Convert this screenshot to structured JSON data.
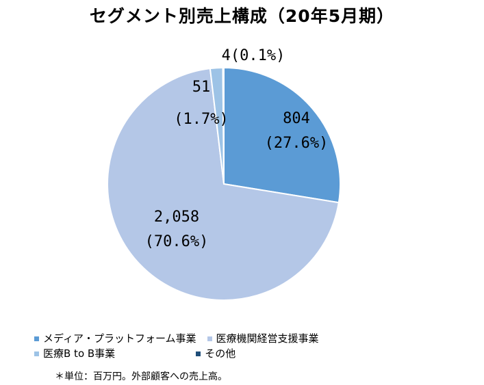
{
  "chart_data": {
    "type": "pie",
    "title": "セグメント別売上構成（20年5月期）",
    "slices": [
      {
        "name": "メディア・プラットフォーム事業",
        "value": 804,
        "pct_label": "(27.6%)",
        "value_label": "804",
        "color": "#5b9bd5"
      },
      {
        "name": "医療機関経営支援事業",
        "value": 2058,
        "pct_label": "(70.6%)",
        "value_label": "2,058",
        "color": "#b4c7e7"
      },
      {
        "name": "医療B to B事業",
        "value": 51,
        "pct_label": "(1.7%)",
        "value_label": "51",
        "color": "#9dc3e6"
      },
      {
        "name": "その他",
        "value": 4,
        "pct_label": "(0.1%)",
        "value_label": "4",
        "color": "#1f4e79"
      }
    ],
    "legend_position": "bottom",
    "footnote": "＊単位：百万円。外部顧客への売上高。"
  }
}
